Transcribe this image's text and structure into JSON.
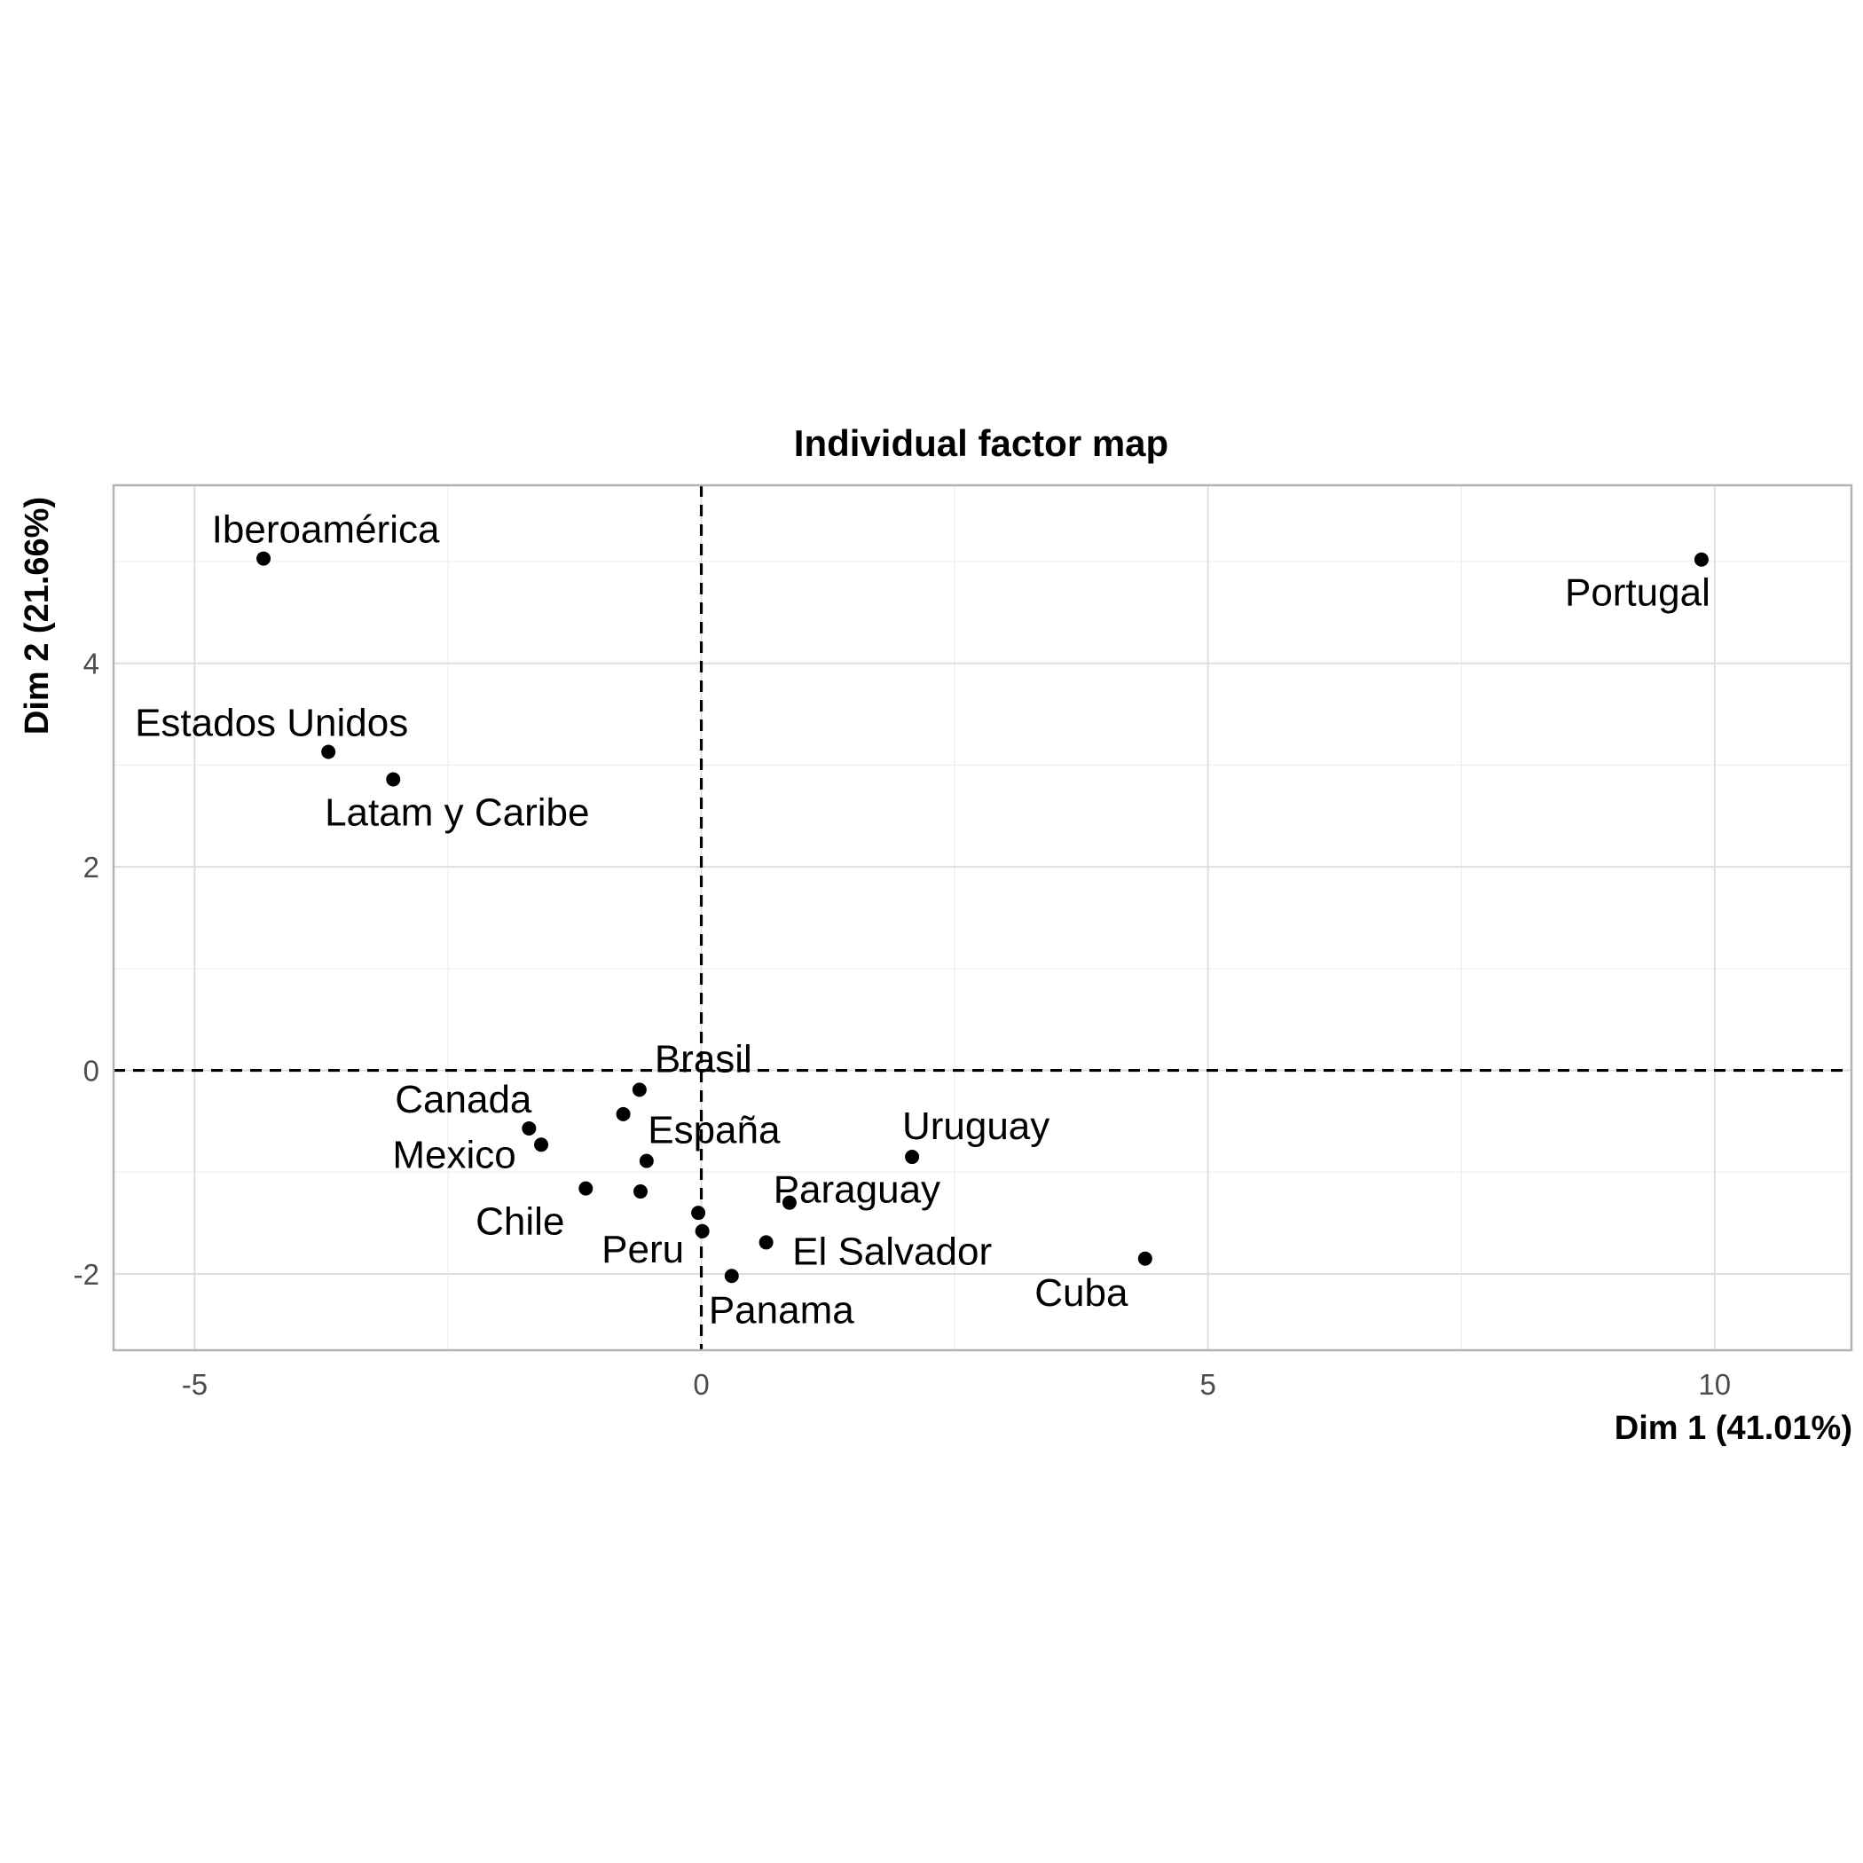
{
  "chart_data": {
    "type": "scatter",
    "title": "Individual factor map",
    "xlabel": "Dim 1 (41.01%)",
    "ylabel": "Dim 2 (21.66%)",
    "xlim": [
      -5.8,
      11.35
    ],
    "ylim": [
      -2.75,
      5.75
    ],
    "xticks": [
      -5,
      0,
      5,
      10
    ],
    "xtick_labels": [
      "-5",
      "0",
      "5",
      "10"
    ],
    "yticks": [
      -2,
      0,
      2,
      4
    ],
    "ytick_labels": [
      "-2",
      "0",
      "2",
      "4"
    ],
    "grid": true,
    "reference_lines": {
      "x": 0,
      "y": 0,
      "style": "dashed"
    },
    "points": [
      {
        "label": "Iberoamérica",
        "x": -4.32,
        "y": 5.03
      },
      {
        "label": "Portugal",
        "x": 9.87,
        "y": 5.02
      },
      {
        "label": "Estados Unidos",
        "x": -3.68,
        "y": 3.13
      },
      {
        "label": "Latam y Caribe",
        "x": -3.04,
        "y": 2.86
      },
      {
        "label": "Brasil",
        "x": -0.61,
        "y": -0.19
      },
      {
        "label": "",
        "x": -0.77,
        "y": -0.43
      },
      {
        "label": "Canada",
        "x": -1.7,
        "y": -0.57
      },
      {
        "label": "Mexico",
        "x": -1.58,
        "y": -0.73
      },
      {
        "label": "España",
        "x": -0.54,
        "y": -0.89
      },
      {
        "label": "Uruguay",
        "x": 2.08,
        "y": -0.85
      },
      {
        "label": "Chile",
        "x": -1.14,
        "y": -1.16
      },
      {
        "label": "",
        "x": -0.6,
        "y": -1.19
      },
      {
        "label": "Paraguay",
        "x": 0.87,
        "y": -1.3
      },
      {
        "label": "",
        "x": -0.03,
        "y": -1.4
      },
      {
        "label": "Peru",
        "x": 0.01,
        "y": -1.58
      },
      {
        "label": "El Salvador",
        "x": 0.64,
        "y": -1.69
      },
      {
        "label": "Cuba",
        "x": 4.38,
        "y": -1.85
      },
      {
        "label": "Panama",
        "x": 0.3,
        "y": -2.02
      }
    ]
  }
}
